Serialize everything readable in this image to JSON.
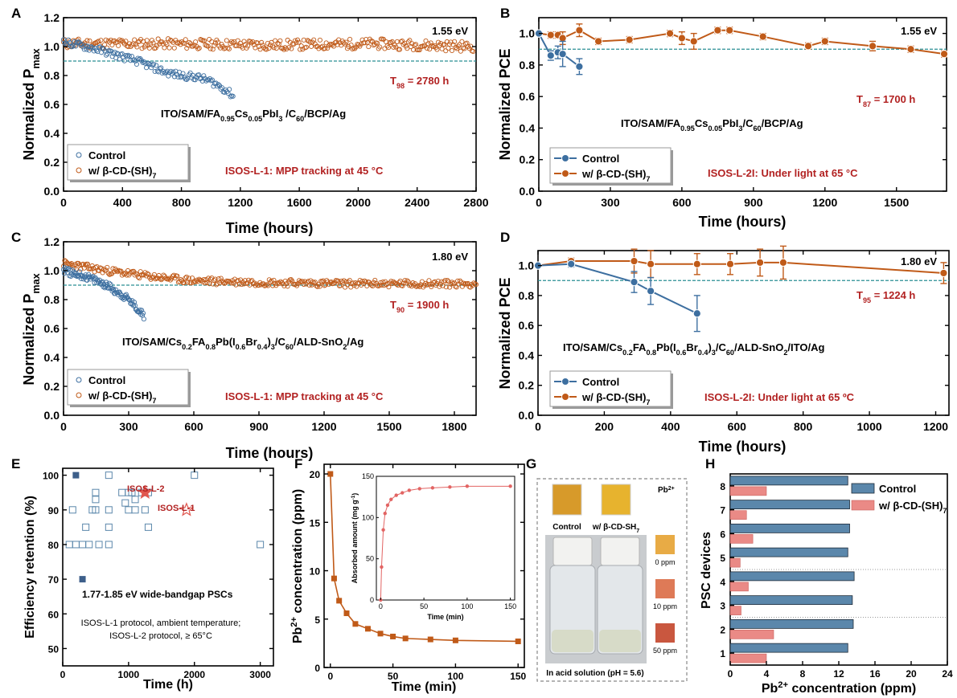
{
  "colors": {
    "blue": "#3d6fa0",
    "orange": "#c05a18",
    "dashed": "#2a8f94",
    "red": "#b22222",
    "barBlue": "#5b87ab",
    "barPink": "#ea8a86"
  },
  "panels": {
    "A": {
      "letter": "A",
      "xlabel": "Time (hours)",
      "ylabel": "Normalized P",
      "ylabel_sub": "max",
      "energy": "1.55 eV",
      "t_label": "T",
      "t_sub": "98",
      "t_rest": " = 2780 h",
      "device": {
        "p1": "ITO/SAM/FA",
        "s1": "0.95",
        "p2": "Cs",
        "s2": "0.05",
        "p3": "PbI",
        "s3": "3",
        "p4": " /C",
        "s4": "60",
        "p5": "/BCP/Ag"
      },
      "protocol": "ISOS-L-1: MPP tracking at 45 °C",
      "legend": {
        "control": "Control",
        "treated_main": "w/ β-CD-(SH)",
        "treated_sub": "7"
      },
      "xticks": [
        "0",
        "400",
        "800",
        "1200",
        "1600",
        "2000",
        "2400",
        "2800"
      ],
      "yticks": [
        "0.0",
        "0.2",
        "0.4",
        "0.6",
        "0.8",
        "1.0",
        "1.2"
      ]
    },
    "B": {
      "letter": "B",
      "xlabel": "Time (hours)",
      "ylabel": "Normalized PCE",
      "energy": "1.55 eV",
      "t_label": "T",
      "t_sub": "87",
      "t_rest": " = 1700 h",
      "device": {
        "p1": "ITO/SAM/FA",
        "s1": "0.95",
        "p2": "Cs",
        "s2": "0.05",
        "p3": "PbI",
        "s3": "3",
        "p4": "/C",
        "s4": "60",
        "p5": "/BCP/Ag"
      },
      "protocol": "ISOS-L-2I: Under light at 65 °C",
      "legend": {
        "control": "Control",
        "treated_main": "w/ β-CD-(SH)",
        "treated_sub": "7"
      },
      "xticks": [
        "0",
        "300",
        "600",
        "900",
        "1200",
        "1500"
      ],
      "yticks": [
        "0.0",
        "0.2",
        "0.4",
        "0.6",
        "0.8",
        "1.0"
      ]
    },
    "C": {
      "letter": "C",
      "xlabel": "Time (hours)",
      "ylabel": "Normalized P",
      "ylabel_sub": "max",
      "energy": "1.80 eV",
      "t_label": "T",
      "t_sub": "90",
      "t_rest": " = 1900 h",
      "device": {
        "p1": "ITO/SAM/Cs",
        "s1": "0.2",
        "p2": "FA",
        "s2": "0.8",
        "p3": "Pb(I",
        "s3": "0.6",
        "p4": "Br",
        "s4": "0.4",
        "p5": ")",
        "s5": "3",
        "p6": "/C",
        "s6": "60",
        "p7": "/ALD-SnO",
        "s7": "2",
        "p8": "/Ag"
      },
      "protocol": "ISOS-L-1: MPP tracking at 45 °C",
      "legend": {
        "control": "Control",
        "treated_main": "w/ β-CD-(SH)",
        "treated_sub": "7"
      },
      "xticks": [
        "0",
        "300",
        "600",
        "900",
        "1200",
        "1500",
        "1800"
      ],
      "yticks": [
        "0.0",
        "0.2",
        "0.4",
        "0.6",
        "0.8",
        "1.0",
        "1.2"
      ]
    },
    "D": {
      "letter": "D",
      "xlabel": "Time (hours)",
      "ylabel": "Normalized PCE",
      "energy": "1.80 eV",
      "t_label": "T",
      "t_sub": "95",
      "t_rest": " = 1224 h",
      "device": {
        "p1": "ITO/SAM/Cs",
        "s1": "0.2",
        "p2": "FA",
        "s2": "0.8",
        "p3": "Pb(I",
        "s3": "0.6",
        "p4": "Br",
        "s4": "0.4",
        "p5": ")",
        "s5": "3",
        "p6": "/C",
        "s6": "60",
        "p7": "/ALD-SnO",
        "s7": "2",
        "p8": "/ITO/Ag"
      },
      "protocol": "ISOS-L-2I: Under light at 65 ºC",
      "legend": {
        "control": "Control",
        "treated_main": "w/ β-CD-(SH)",
        "treated_sub": "7"
      },
      "xticks": [
        "0",
        "200",
        "400",
        "600",
        "800",
        "1000",
        "1200"
      ],
      "yticks": [
        "0.0",
        "0.2",
        "0.4",
        "0.6",
        "0.8",
        "1.0"
      ]
    },
    "E": {
      "letter": "E",
      "xlabel": "Time (h)",
      "ylabel": "Efficiency retention (%)",
      "star1": "ISOS-L-2",
      "star2": "ISOS-L-1",
      "note1": "1.77-1.85 eV wide-bandgap PSCs",
      "note2": "ISOS-L-1 protocol, ambient temperature;",
      "note3": "ISOS-L-2 protocol, ≥ 65°C",
      "xticks": [
        "0",
        "1000",
        "2000",
        "3000"
      ],
      "yticks": [
        "50",
        "60",
        "70",
        "80",
        "90",
        "100"
      ]
    },
    "F": {
      "letter": "F",
      "xlabel": "Time (min)",
      "ylabel_pre": "Pb",
      "ylabel_sup": "2+",
      "ylabel_post": " concentration (ppm)",
      "xticks": [
        "0",
        "50",
        "100",
        "150"
      ],
      "yticks": [
        "0",
        "5",
        "10",
        "15",
        "20"
      ],
      "inset_xlabel": "Time (min)",
      "inset_ylabel": "Absorbed amount (mg g",
      "inset_ylabel_sup": "-1",
      "inset_ylabel_end": ")",
      "inset_xticks": [
        "0",
        "50",
        "100",
        "150"
      ],
      "inset_yticks": [
        "0",
        "50",
        "100",
        "150"
      ]
    },
    "G": {
      "letter": "G",
      "ion": "Pb",
      "ion_sup": "2+",
      "control": "Control",
      "treated": "w/ β-CD-SH",
      "treated_sub": "7",
      "scale": [
        "0 ppm",
        "10 ppm",
        "50 ppm"
      ],
      "caption": "In acid solution (pH = 5.6)"
    },
    "H": {
      "letter": "H",
      "xlabel_pre": "Pb",
      "xlabel_sup": "2+",
      "xlabel_post": " concentration (ppm)",
      "ylabel": "PSC devices",
      "legend": {
        "control": "Control",
        "treated_main": "w/ β-CD-(SH)",
        "treated_sub": "7"
      },
      "xticks": [
        "0",
        "4",
        "8",
        "12",
        "16",
        "20",
        "24"
      ],
      "yticks": [
        "1",
        "2",
        "3",
        "4",
        "5",
        "6",
        "7",
        "8"
      ]
    }
  },
  "chart_data": [
    {
      "id": "A",
      "type": "scatter",
      "xlim": [
        0,
        2800
      ],
      "ylim": [
        0,
        1.2
      ],
      "reference_line": 0.9,
      "series": [
        {
          "name": "Control",
          "kind": "decay",
          "points": [
            [
              0,
              1.03
            ],
            [
              100,
              1.01
            ],
            [
              200,
              0.99
            ],
            [
              300,
              0.96
            ],
            [
              400,
              0.93
            ],
            [
              500,
              0.9
            ],
            [
              600,
              0.86
            ],
            [
              700,
              0.82
            ],
            [
              800,
              0.8
            ],
            [
              900,
              0.79
            ],
            [
              1000,
              0.76
            ],
            [
              1100,
              0.7
            ],
            [
              1150,
              0.66
            ]
          ]
        },
        {
          "name": "w/ β-CD-(SH)7",
          "kind": "stable",
          "points": [
            [
              0,
              1.02
            ],
            [
              700,
              1.02
            ],
            [
              1400,
              1.01
            ],
            [
              2100,
              1.02
            ],
            [
              2780,
              1.0
            ]
          ]
        }
      ]
    },
    {
      "id": "B",
      "type": "line",
      "xlim": [
        0,
        1700
      ],
      "ylim": [
        0,
        1.1
      ],
      "reference_line": 0.9,
      "series": [
        {
          "name": "Control",
          "x": [
            0,
            50,
            80,
            100,
            170
          ],
          "y": [
            1.0,
            0.86,
            0.88,
            0.87,
            0.79
          ],
          "err": [
            0,
            0.03,
            0.04,
            0.08,
            0.05
          ]
        },
        {
          "name": "w/ β-CD-(SH)7",
          "x": [
            0,
            50,
            80,
            100,
            170,
            250,
            380,
            550,
            600,
            650,
            750,
            800,
            940,
            1130,
            1200,
            1400,
            1560,
            1700
          ],
          "y": [
            1.0,
            0.99,
            0.99,
            0.97,
            1.02,
            0.95,
            0.96,
            1.0,
            0.97,
            0.95,
            1.02,
            1.02,
            0.98,
            0.92,
            0.95,
            0.92,
            0.9,
            0.87
          ],
          "err": [
            0,
            0.02,
            0.02,
            0.04,
            0.04,
            0.02,
            0.02,
            0.02,
            0.04,
            0.05,
            0.02,
            0.02,
            0.02,
            0.02,
            0.02,
            0.03,
            0.02,
            0.02
          ]
        }
      ]
    },
    {
      "id": "C",
      "type": "scatter",
      "xlim": [
        0,
        1900
      ],
      "ylim": [
        0,
        1.2
      ],
      "reference_line": 0.9,
      "series": [
        {
          "name": "Control",
          "kind": "decay",
          "points": [
            [
              0,
              1.0
            ],
            [
              50,
              0.98
            ],
            [
              100,
              0.96
            ],
            [
              150,
              0.93
            ],
            [
              200,
              0.9
            ],
            [
              250,
              0.85
            ],
            [
              300,
              0.8
            ],
            [
              350,
              0.72
            ],
            [
              370,
              0.69
            ]
          ]
        },
        {
          "name": "w/ β-CD-(SH)7",
          "kind": "stable",
          "points": [
            [
              0,
              1.05
            ],
            [
              200,
              1.0
            ],
            [
              400,
              0.96
            ],
            [
              600,
              0.93
            ],
            [
              900,
              0.92
            ],
            [
              1300,
              0.91
            ],
            [
              1900,
              0.91
            ]
          ]
        }
      ]
    },
    {
      "id": "D",
      "type": "line",
      "xlim": [
        0,
        1224
      ],
      "ylim": [
        0,
        1.1
      ],
      "reference_line": 0.9,
      "series": [
        {
          "name": "Control",
          "x": [
            0,
            100,
            290,
            340,
            480
          ],
          "y": [
            1.0,
            1.01,
            0.89,
            0.83,
            0.68
          ],
          "err": [
            0,
            0.02,
            0.07,
            0.09,
            0.12
          ]
        },
        {
          "name": "w/ β-CD-(SH)7",
          "x": [
            0,
            100,
            290,
            340,
            480,
            580,
            670,
            740,
            1224
          ],
          "y": [
            1.0,
            1.03,
            1.03,
            1.01,
            1.01,
            1.01,
            1.02,
            1.02,
            0.95
          ],
          "err": [
            0,
            0.02,
            0.08,
            0.09,
            0.07,
            0.07,
            0.09,
            0.11,
            0.07
          ]
        }
      ]
    },
    {
      "id": "E",
      "type": "scatter",
      "xlim": [
        0,
        3200
      ],
      "ylim": [
        45,
        102
      ],
      "series": [
        {
          "name": "ISOS-L-1 protocol, ambient temperature",
          "marker": "open-square",
          "points": [
            [
              100,
              80
            ],
            [
              200,
              80
            ],
            [
              300,
              80
            ],
            [
              400,
              80
            ],
            [
              450,
              90
            ],
            [
              500,
              95
            ],
            [
              500,
              93
            ],
            [
              500,
              90
            ],
            [
              550,
              80
            ],
            [
              700,
              85
            ],
            [
              700,
              80
            ],
            [
              700,
              90
            ],
            [
              700,
              100
            ],
            [
              900,
              95
            ],
            [
              950,
              92
            ],
            [
              1000,
              95
            ],
            [
              1000,
              90
            ],
            [
              1050,
              95
            ],
            [
              1100,
              93
            ],
            [
              1100,
              90
            ],
            [
              1200,
              95
            ],
            [
              1250,
              90
            ],
            [
              1300,
              85
            ],
            [
              1300,
              95
            ],
            [
              2000,
              100
            ],
            [
              3000,
              80
            ],
            [
              150,
              90
            ],
            [
              350,
              85
            ]
          ]
        },
        {
          "name": "ISOS-L-2 protocol, ≥ 65°C",
          "marker": "filled-square",
          "points": [
            [
              200,
              100
            ],
            [
              300,
              70
            ]
          ]
        },
        {
          "name": "ISOS-L-2",
          "marker": "filled-star",
          "points": [
            [
              1250,
              95
            ]
          ]
        },
        {
          "name": "ISOS-L-1",
          "marker": "open-star",
          "points": [
            [
              1880,
              90
            ]
          ]
        }
      ]
    },
    {
      "id": "F",
      "type": "line",
      "xlim": [
        -5,
        155
      ],
      "ylim": [
        0,
        21
      ],
      "series": [
        {
          "name": "Pb2+ concentration",
          "x": [
            0,
            3,
            7,
            13,
            20,
            30,
            40,
            50,
            60,
            80,
            100,
            150
          ],
          "y": [
            20,
            9.2,
            6.9,
            5.6,
            4.5,
            4.0,
            3.5,
            3.2,
            3.0,
            2.9,
            2.8,
            2.7
          ]
        }
      ],
      "inset": {
        "xlim": [
          -5,
          155
        ],
        "ylim": [
          0,
          150
        ],
        "x": [
          0,
          1,
          3,
          5,
          8,
          12,
          18,
          25,
          33,
          45,
          60,
          80,
          100,
          150
        ],
        "y": [
          0,
          40,
          85,
          105,
          115,
          122,
          127,
          130,
          133,
          135,
          136,
          137,
          138,
          138
        ]
      }
    },
    {
      "id": "H",
      "type": "bar",
      "orientation": "horizontal",
      "xlim": [
        0,
        24
      ],
      "categories": [
        "1",
        "2",
        "3",
        "4",
        "5",
        "6",
        "7",
        "8"
      ],
      "series": [
        {
          "name": "Control",
          "values": [
            13.0,
            13.6,
            13.5,
            13.7,
            13.0,
            13.2,
            13.2,
            13.0
          ]
        },
        {
          "name": "w/ β-CD-(SH)7",
          "values": [
            4.0,
            4.8,
            1.2,
            2.0,
            1.1,
            2.5,
            1.8,
            4.0
          ]
        }
      ]
    }
  ]
}
